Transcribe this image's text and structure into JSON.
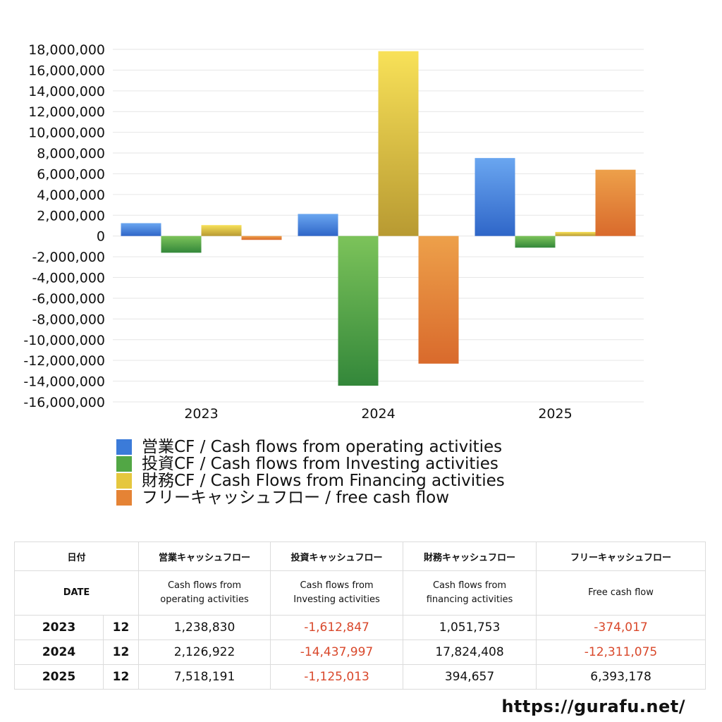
{
  "chart_data": {
    "type": "bar",
    "categories": [
      "2023",
      "2024",
      "2025"
    ],
    "ylim": [
      -16000000,
      18000000
    ],
    "ytick_step": 2000000,
    "grid": true,
    "legend_placement": "bottom",
    "series": [
      {
        "name": "営業CF / Cash flows from operating activities",
        "values": [
          1238830,
          2126922,
          7518191
        ],
        "color_top": "#6aa6f0",
        "color_bottom": "#2f66c8",
        "swatch": "#3b7bd9"
      },
      {
        "name": "投資CF / Cash flows from Investing activities",
        "values": [
          -1612847,
          -14437997,
          -1125013
        ],
        "color_top": "#7cc35a",
        "color_bottom": "#33873a",
        "swatch": "#52a745"
      },
      {
        "name": "財務CF / Cash Flows from Financing activities",
        "values": [
          1051753,
          17824408,
          394657
        ],
        "color_top": "#f8e158",
        "color_bottom": "#b89a32",
        "swatch": "#e5c73e"
      },
      {
        "name": "フリーキャッシュフロー / free cash flow",
        "values": [
          -374017,
          -12311075,
          6393178
        ],
        "color_top": "#eda04a",
        "color_bottom": "#d96a2c",
        "swatch": "#e58335"
      }
    ]
  },
  "table": {
    "header": {
      "date_jp": "日付",
      "operating_jp": "営業キャッシュフロー",
      "investing_jp": "投資キャッシュフロー",
      "financing_jp": "財務キャッシュフロー",
      "free_jp": "フリーキャッシュフロー",
      "date_en": "DATE",
      "operating_en_1": "Cash flows from",
      "operating_en_2": "operating activities",
      "investing_en_1": "Cash flows from",
      "investing_en_2": "Investing activities",
      "financing_en_1": "Cash flows from",
      "financing_en_2": "financing activities",
      "free_en": "Free cash flow"
    },
    "rows": [
      {
        "year": "2023",
        "month": "12",
        "operating": "1,238,830",
        "investing": "-1,612,847",
        "financing": "1,051,753",
        "free": "-374,017"
      },
      {
        "year": "2024",
        "month": "12",
        "operating": "2,126,922",
        "investing": "-14,437,997",
        "financing": "17,824,408",
        "free": "-12,311,075"
      },
      {
        "year": "2025",
        "month": "12",
        "operating": "7,518,191",
        "investing": "-1,125,013",
        "financing": "394,657",
        "free": "6,393,178"
      }
    ]
  },
  "footer": {
    "url": "https://gurafu.net/"
  }
}
